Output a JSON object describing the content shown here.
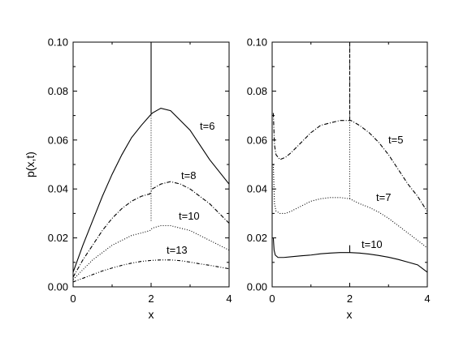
{
  "chart_data": [
    {
      "type": "line",
      "title": "",
      "xlabel": "x",
      "ylabel": "p(x,t)",
      "xlim": [
        0,
        4
      ],
      "ylim": [
        0,
        0.1
      ],
      "xticks": [
        "0",
        "2",
        "4"
      ],
      "yticks": [
        "0.00",
        "0.02",
        "0.04",
        "0.06",
        "0.08",
        "0.10"
      ],
      "grid": false,
      "series": [
        {
          "name": "t=6",
          "style": "solid",
          "x": [
            0,
            0.25,
            0.5,
            0.75,
            1.0,
            1.25,
            1.5,
            1.75,
            1.97,
            2.03,
            2.25,
            2.5,
            2.75,
            3.0,
            3.25,
            3.5,
            3.75,
            4.0
          ],
          "values": [
            0.006,
            0.017,
            0.027,
            0.037,
            0.046,
            0.054,
            0.061,
            0.066,
            0.07,
            0.071,
            0.073,
            0.072,
            0.068,
            0.064,
            0.058,
            0.052,
            0.047,
            0.042
          ],
          "spike": {
            "x": 2.0,
            "y": 0.1
          }
        },
        {
          "name": "t=8",
          "style": "dashdot",
          "x": [
            0,
            0.25,
            0.5,
            0.75,
            1.0,
            1.25,
            1.5,
            1.75,
            1.97,
            2.03,
            2.25,
            2.5,
            2.75,
            3.0,
            3.25,
            3.5,
            3.75,
            4.0
          ],
          "values": [
            0.004,
            0.011,
            0.017,
            0.023,
            0.028,
            0.032,
            0.035,
            0.037,
            0.038,
            0.04,
            0.042,
            0.043,
            0.042,
            0.04,
            0.037,
            0.034,
            0.03,
            0.026
          ]
        },
        {
          "name": "t=10",
          "style": "dotted",
          "x": [
            0,
            0.25,
            0.5,
            0.75,
            1.0,
            1.25,
            1.5,
            1.75,
            1.97,
            2.03,
            2.25,
            2.5,
            2.75,
            3.0,
            3.25,
            3.5,
            3.75,
            4.0
          ],
          "values": [
            0.003,
            0.007,
            0.011,
            0.014,
            0.017,
            0.019,
            0.021,
            0.022,
            0.023,
            0.024,
            0.025,
            0.025,
            0.024,
            0.023,
            0.021,
            0.019,
            0.017,
            0.015
          ]
        },
        {
          "name": "t=13",
          "style": "dashdotdot",
          "x": [
            0,
            0.25,
            0.5,
            0.75,
            1.0,
            1.25,
            1.5,
            1.75,
            2.0,
            2.25,
            2.5,
            2.75,
            3.0,
            3.25,
            3.5,
            3.75,
            4.0
          ],
          "values": [
            0.002,
            0.0035,
            0.005,
            0.0065,
            0.0077,
            0.0088,
            0.0097,
            0.0104,
            0.0108,
            0.011,
            0.011,
            0.0107,
            0.0101,
            0.0094,
            0.0088,
            0.0081,
            0.0074
          ]
        }
      ],
      "connector": {
        "x": 2.0,
        "y_from": 0.027,
        "y_to": 0.071
      }
    },
    {
      "type": "line",
      "title": "",
      "xlabel": "x",
      "ylabel": "",
      "xlim": [
        0,
        4
      ],
      "ylim": [
        0,
        0.1
      ],
      "xticks": [
        "0",
        "2",
        "4"
      ],
      "yticks": [
        "0.00",
        "0.02",
        "0.04",
        "0.06",
        "0.08",
        "0.10"
      ],
      "grid": false,
      "series": [
        {
          "name": "t=5",
          "style": "dashdot",
          "x": [
            0.03,
            0.06,
            0.1,
            0.2,
            0.35,
            0.5,
            0.75,
            1.0,
            1.25,
            1.5,
            1.75,
            1.97,
            2.03,
            2.25,
            2.5,
            2.75,
            3.0,
            3.25,
            3.5,
            3.75,
            3.99
          ],
          "values": [
            0.071,
            0.058,
            0.054,
            0.052,
            0.053,
            0.055,
            0.059,
            0.063,
            0.066,
            0.067,
            0.068,
            0.068,
            0.068,
            0.066,
            0.063,
            0.059,
            0.054,
            0.048,
            0.042,
            0.037,
            0.031
          ],
          "spike": {
            "x": 2.0,
            "y": 0.1
          },
          "end_drop": {
            "x": 4.0,
            "y": 0.003
          }
        },
        {
          "name": "t=7",
          "style": "dotted",
          "x": [
            0.03,
            0.06,
            0.1,
            0.2,
            0.35,
            0.5,
            0.75,
            1.0,
            1.25,
            1.5,
            1.75,
            2.0,
            2.25,
            2.5,
            2.75,
            3.0,
            3.25,
            3.5,
            3.75,
            3.99
          ],
          "values": [
            0.05,
            0.034,
            0.031,
            0.03,
            0.03,
            0.031,
            0.033,
            0.035,
            0.036,
            0.0365,
            0.0365,
            0.036,
            0.034,
            0.0325,
            0.0305,
            0.028,
            0.025,
            0.022,
            0.019,
            0.016
          ]
        },
        {
          "name": "t=10",
          "style": "solid",
          "x": [
            0.03,
            0.05,
            0.08,
            0.15,
            0.3,
            0.5,
            0.75,
            1.0,
            1.25,
            1.5,
            1.75,
            2.0,
            2.25,
            2.5,
            2.75,
            3.0,
            3.25,
            3.5,
            3.75,
            4.0
          ],
          "values": [
            0.02,
            0.015,
            0.013,
            0.012,
            0.012,
            0.0123,
            0.0127,
            0.013,
            0.0135,
            0.0138,
            0.014,
            0.014,
            0.0138,
            0.0134,
            0.0128,
            0.0121,
            0.0112,
            0.0101,
            0.009,
            0.006
          ],
          "spike": {
            "x": 2.0,
            "y": 0.017
          }
        }
      ],
      "connector": {
        "x": 2.0,
        "y_from": 0.036,
        "y_to": 0.1
      }
    }
  ]
}
